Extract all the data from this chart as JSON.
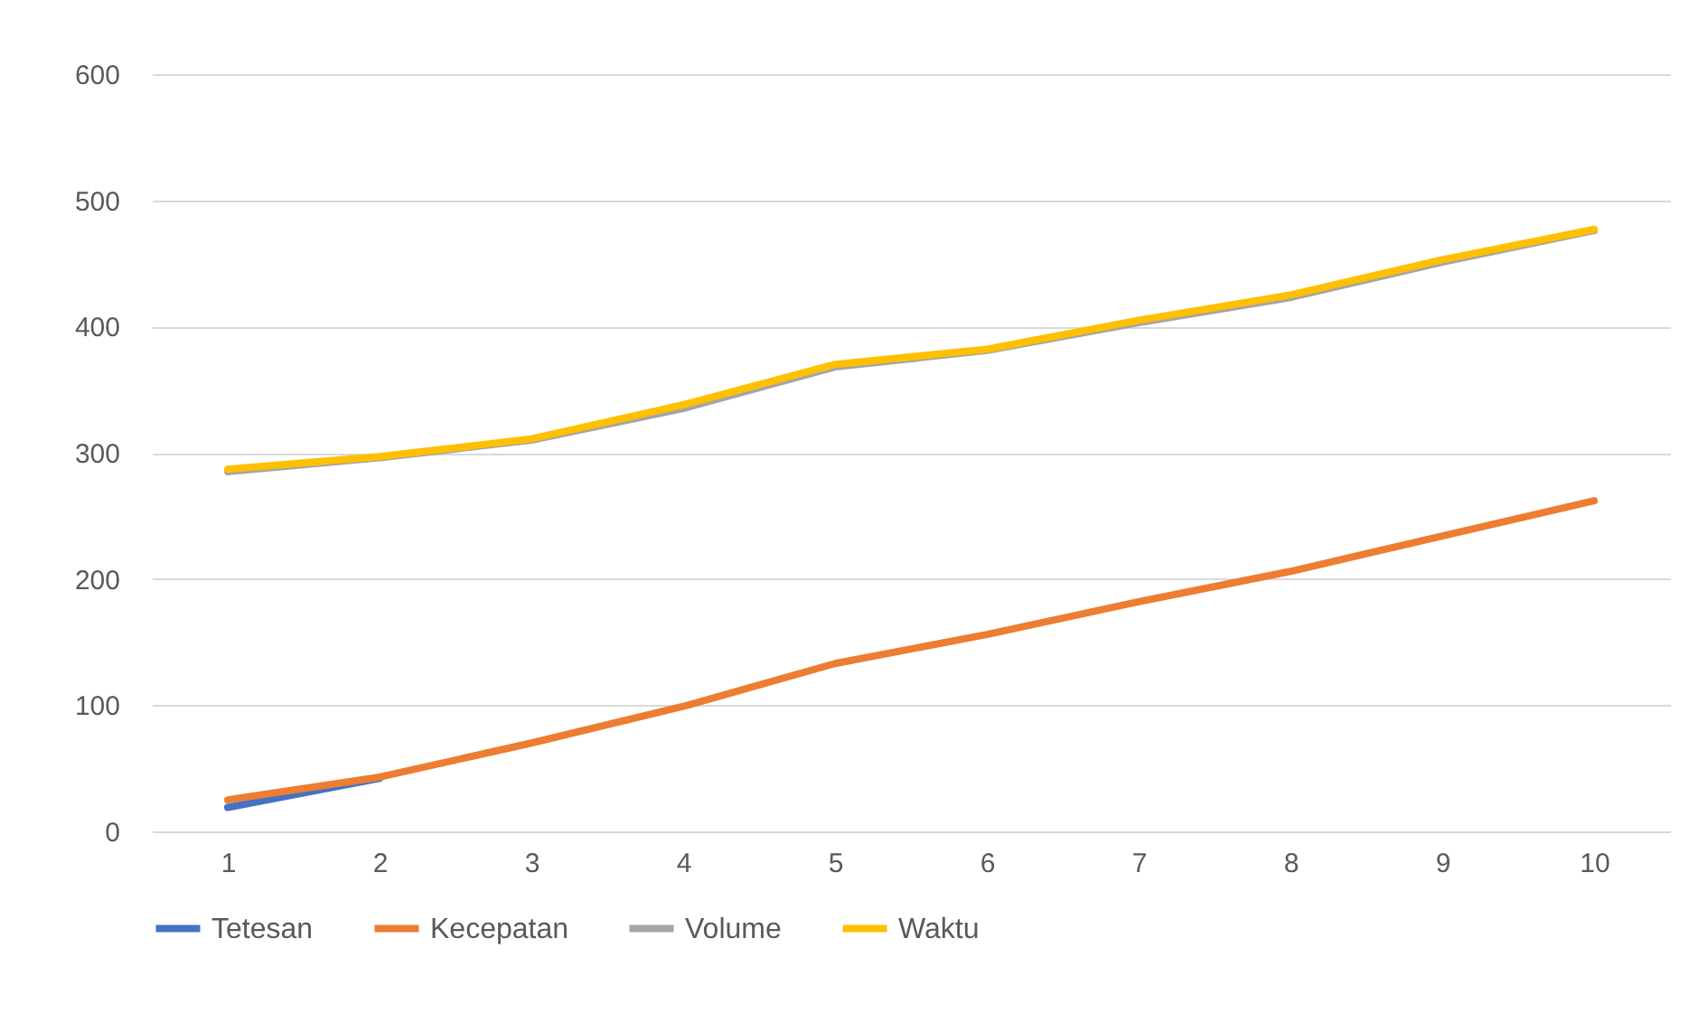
{
  "chart_data": {
    "type": "line",
    "categories": [
      "1",
      "2",
      "3",
      "4",
      "5",
      "6",
      "7",
      "8",
      "9",
      "10"
    ],
    "series": [
      {
        "name": "Tetesan",
        "color": "#4472c4",
        "values": [
          19,
          42,
          null,
          null,
          null,
          null,
          null,
          null,
          null,
          null
        ]
      },
      {
        "name": "Kecepatan",
        "color": "#ed7d31",
        "values": [
          25,
          43,
          70,
          99,
          133,
          156,
          182,
          206,
          234,
          262
        ]
      },
      {
        "name": "Volume",
        "color": "#a5a5a5",
        "values": [
          285,
          296,
          310,
          335,
          368,
          381,
          403,
          423,
          451,
          476
        ]
      },
      {
        "name": "Waktu",
        "color": "#ffc000",
        "values": [
          287,
          297,
          311,
          338,
          370,
          382,
          405,
          425,
          453,
          477
        ]
      }
    ],
    "ylim": [
      0,
      600
    ],
    "yticks": [
      0,
      100,
      200,
      300,
      400,
      500,
      600
    ],
    "grid": "y",
    "legend": "bottom",
    "marker": "none",
    "line_style": "solid"
  }
}
